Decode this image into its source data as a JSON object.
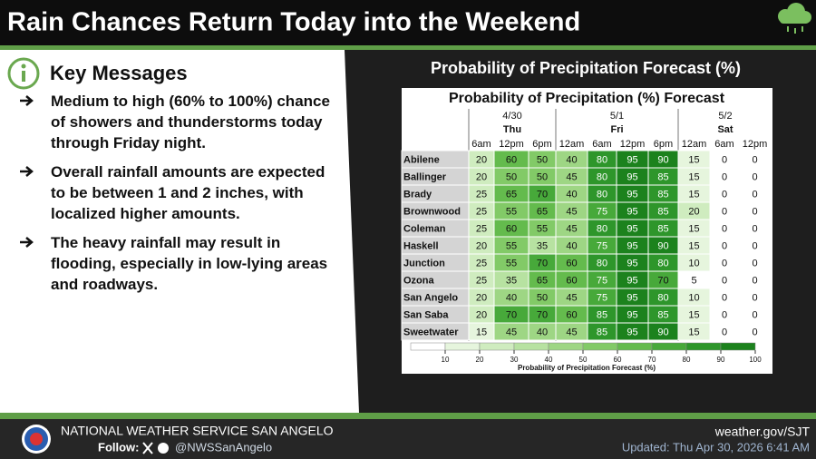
{
  "header": {
    "title": "Rain Chances Return Today into the Weekend"
  },
  "key_messages": {
    "title": "Key Messages",
    "items": [
      "Medium to high (60% to 100%) chance of showers and thunderstorms today through Friday night.",
      "Overall rainfall amounts are expected to be between 1 and 2 inches, with localized higher amounts.",
      "The heavy rainfall may result in flooding, especially in low-lying areas and roadways."
    ]
  },
  "forecast": {
    "panel_title": "Probability of Precipitation Forecast (%)",
    "title": "Probability of Precipitation (%) Forecast",
    "days": [
      {
        "date": "4/30",
        "day": "Thu"
      },
      {
        "date": "5/1",
        "day": "Fri"
      },
      {
        "date": "5/2",
        "day": "Sat"
      }
    ],
    "times": [
      "6am",
      "12pm",
      "6pm",
      "12am",
      "6am",
      "12pm",
      "6pm",
      "12am",
      "6am",
      "12pm"
    ],
    "rows": [
      {
        "name": "Abilene",
        "values": [
          20,
          60,
          50,
          40,
          80,
          95,
          90,
          15,
          0,
          0
        ]
      },
      {
        "name": "Ballinger",
        "values": [
          20,
          50,
          50,
          45,
          80,
          95,
          85,
          15,
          0,
          0
        ]
      },
      {
        "name": "Brady",
        "values": [
          25,
          65,
          70,
          40,
          80,
          95,
          85,
          15,
          0,
          0
        ]
      },
      {
        "name": "Brownwood",
        "values": [
          25,
          55,
          65,
          45,
          75,
          95,
          85,
          20,
          0,
          0
        ]
      },
      {
        "name": "Coleman",
        "values": [
          25,
          60,
          55,
          45,
          80,
          95,
          85,
          15,
          0,
          0
        ]
      },
      {
        "name": "Haskell",
        "values": [
          20,
          55,
          35,
          40,
          75,
          95,
          90,
          15,
          0,
          0
        ]
      },
      {
        "name": "Junction",
        "values": [
          25,
          55,
          70,
          60,
          80,
          95,
          80,
          10,
          0,
          0
        ]
      },
      {
        "name": "Ozona",
        "values": [
          25,
          35,
          65,
          60,
          75,
          95,
          70,
          5,
          0,
          0
        ]
      },
      {
        "name": "San Angelo",
        "values": [
          20,
          40,
          50,
          45,
          75,
          95,
          80,
          10,
          0,
          0
        ]
      },
      {
        "name": "San Saba",
        "values": [
          20,
          70,
          70,
          60,
          85,
          95,
          85,
          15,
          0,
          0
        ]
      },
      {
        "name": "Sweetwater",
        "values": [
          15,
          45,
          40,
          45,
          85,
          95,
          90,
          15,
          0,
          0
        ]
      }
    ],
    "colorbar": {
      "lim": [
        0,
        100
      ],
      "ticks": [
        10,
        20,
        30,
        40,
        50,
        60,
        70,
        80,
        90,
        100
      ],
      "label": "Probability of Precipitation Forecast (%)"
    }
  },
  "footer": {
    "office": "NATIONAL WEATHER SERVICE SAN ANGELO",
    "follow": "Follow:",
    "handle": "@NWSSanAngelo",
    "website": "weather.gov/SJT",
    "updated": "Updated: Thu Apr 30, 2026 6:41 AM"
  }
}
